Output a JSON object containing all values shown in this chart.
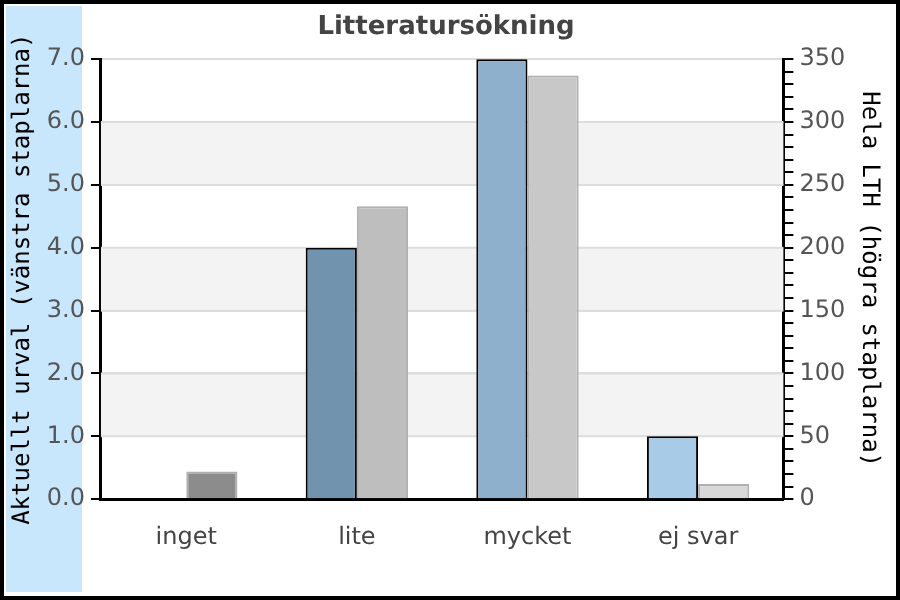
{
  "chart_data": {
    "type": "bar",
    "title": "Litteratursökning",
    "ylabel": "Aktuellt urval (vänstra staplarna)",
    "y2label": "Hela LTH (högra staplarna)",
    "categories": [
      "inget",
      "lite",
      "mycket",
      "ej svar"
    ],
    "series": [
      {
        "colors": [
          "#7293ae",
          "#7293ae",
          "#8fb0cc",
          "#a8cce8"
        ],
        "values": [
          0,
          4.0,
          7.0,
          1.0
        ]
      },
      {
        "colors": [
          "#8c8c8c",
          "#bebebe",
          "#c8c8c8",
          "#d8d8d8"
        ],
        "values": [
          22,
          233,
          337,
          12
        ],
        "axis": "y2"
      }
    ],
    "ylim": [
      0,
      7
    ],
    "yticks": [
      {
        "value": 0,
        "label": "0.0"
      },
      {
        "value": 1,
        "label": "1.0"
      },
      {
        "value": 2,
        "label": "2.0"
      },
      {
        "value": 3,
        "label": "3.0"
      },
      {
        "value": 4,
        "label": "4.0"
      },
      {
        "value": 5,
        "label": "5.0"
      },
      {
        "value": 6,
        "label": "6.0"
      },
      {
        "value": 7,
        "label": "7.0"
      }
    ],
    "y2lim": [
      0,
      350
    ],
    "y2ticks": [
      0,
      {
        "value": 10,
        "label": null
      },
      {
        "value": 20,
        "label": null
      },
      {
        "value": 30,
        "label": null
      },
      {
        "value": 40,
        "label": null
      },
      50,
      {
        "value": 60,
        "label": null
      },
      {
        "value": 70,
        "label": null
      },
      {
        "value": 80,
        "label": null
      },
      {
        "value": 90,
        "label": null
      },
      100,
      {
        "value": 110,
        "label": null
      },
      {
        "value": 120,
        "label": null
      },
      {
        "value": 130,
        "label": null
      },
      {
        "value": 140,
        "label": null
      },
      150,
      {
        "value": 160,
        "label": null
      },
      {
        "value": 170,
        "label": null
      },
      {
        "value": 180,
        "label": null
      },
      {
        "value": 190,
        "label": null
      },
      200,
      {
        "value": 210,
        "label": null
      },
      {
        "value": 220,
        "label": null
      },
      {
        "value": 230,
        "label": null
      },
      {
        "value": 240,
        "label": null
      },
      250,
      {
        "value": 260,
        "label": null
      },
      {
        "value": 270,
        "label": null
      },
      {
        "value": 280,
        "label": null
      },
      {
        "value": 290,
        "label": null
      },
      300,
      {
        "value": 310,
        "label": null
      },
      {
        "value": 320,
        "label": null
      },
      {
        "value": 330,
        "label": null
      },
      {
        "value": 340,
        "label": null
      },
      350
    ],
    "grid": "y",
    "legend": false
  }
}
